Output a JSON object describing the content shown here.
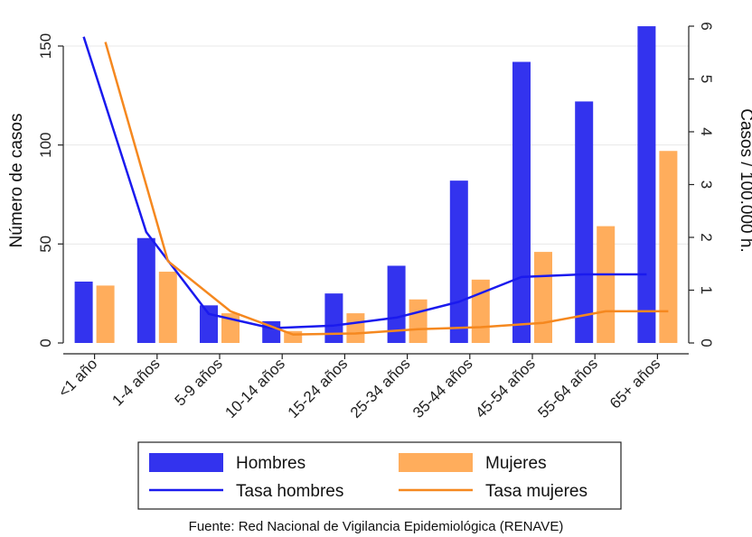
{
  "chart_data": {
    "type": "bar",
    "categories": [
      "<1 año",
      "1-4 años",
      "5-9 años",
      "10-14 años",
      "15-24 años",
      "25-34 años",
      "35-44 años",
      "45-54 años",
      "55-64 años",
      "65+ años"
    ],
    "series": [
      {
        "name": "Hombres",
        "kind": "bar",
        "axis": "left",
        "color": "#3333ee",
        "values": [
          31,
          53,
          19,
          11,
          25,
          39,
          82,
          142,
          122,
          160
        ]
      },
      {
        "name": "Mujeres",
        "kind": "bar",
        "axis": "left",
        "color": "#ffad5c",
        "values": [
          29,
          36,
          15,
          6,
          15,
          22,
          32,
          46,
          59,
          97
        ]
      },
      {
        "name": "Tasa hombres",
        "kind": "line",
        "axis": "right",
        "color": "#1a1aee",
        "values": [
          5.8,
          2.1,
          0.55,
          0.28,
          0.33,
          0.48,
          0.78,
          1.25,
          1.3,
          1.3
        ]
      },
      {
        "name": "Tasa mujeres",
        "kind": "line",
        "axis": "right",
        "color": "#f5881f",
        "values": [
          5.7,
          1.55,
          0.6,
          0.16,
          0.18,
          0.26,
          0.3,
          0.38,
          0.6,
          0.6
        ]
      }
    ],
    "ylabel": "Número de casos",
    "ylim": [
      0,
      160
    ],
    "yticks": [
      0,
      50,
      100,
      150
    ],
    "y2label": "Casos / 100.000 h.",
    "y2lim": [
      0,
      6
    ],
    "y2ticks": [
      0,
      1,
      2,
      3,
      4,
      5,
      6
    ],
    "grid": true,
    "legend": "bottom",
    "source": "Fuente: Red Nacional de Vigilancia Epidemiológica (RENAVE)"
  }
}
